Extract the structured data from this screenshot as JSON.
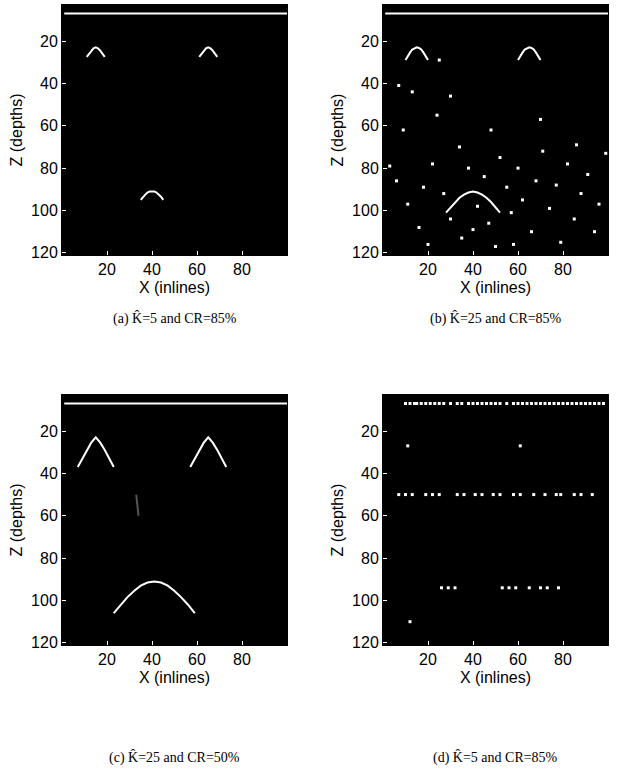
{
  "chart_data": [
    {
      "type": "scatter",
      "caption": "(a) K̂=5 and CR=85%",
      "x_label": "X (inlines)",
      "y_label": "Z (depths)",
      "xlim": [
        0,
        100
      ],
      "ylim": [
        121,
        3
      ],
      "xticks": [
        20,
        40,
        60,
        80
      ],
      "yticks": [
        20,
        40,
        60,
        80,
        100,
        120
      ],
      "series": [
        {
          "type": "line",
          "color": "#ffffff",
          "line_style": "solid",
          "x": [
            1,
            100
          ],
          "values": [
            7,
            7
          ]
        },
        {
          "type": "line",
          "color": "#ffffff",
          "line_style": "solid",
          "x": [
            11,
            12,
            13,
            14,
            15,
            16,
            17,
            18,
            19
          ],
          "values": [
            27.5,
            26,
            24.5,
            23.5,
            23,
            23.5,
            24.5,
            26,
            27.5
          ]
        },
        {
          "type": "line",
          "color": "#ffffff",
          "line_style": "solid",
          "x": [
            61,
            62,
            63,
            64,
            65,
            66,
            67,
            68,
            69
          ],
          "values": [
            27.5,
            26,
            24.5,
            23.5,
            23,
            23.5,
            24.5,
            26,
            27.5
          ]
        },
        {
          "type": "line",
          "color": "#ffffff",
          "line_style": "solid",
          "x": [
            35,
            36,
            37,
            38,
            39,
            40,
            41,
            42,
            43,
            44,
            45
          ],
          "values": [
            95,
            93.5,
            92.5,
            91.5,
            91,
            91,
            91,
            91.5,
            92.5,
            93.5,
            95
          ]
        }
      ]
    },
    {
      "type": "scatter",
      "caption": "(b) K̂=25 and CR=85%",
      "x_label": "X (inlines)",
      "y_label": "Z (depths)",
      "xlim": [
        0,
        100
      ],
      "ylim": [
        121,
        3
      ],
      "xticks": [
        20,
        40,
        60,
        80
      ],
      "yticks": [
        20,
        40,
        60,
        80,
        100,
        120
      ],
      "series": [
        {
          "type": "line",
          "color": "#ffffff",
          "line_style": "solid",
          "x": [
            1,
            100
          ],
          "values": [
            7,
            7
          ]
        },
        {
          "type": "line",
          "color": "#ffffff",
          "line_style": "solid",
          "x": [
            10,
            11,
            12,
            13,
            14,
            15,
            16,
            17,
            18,
            19,
            20
          ],
          "values": [
            29,
            27,
            25.5,
            24,
            23.3,
            23,
            23.3,
            24,
            25.5,
            27,
            29
          ]
        },
        {
          "type": "line",
          "color": "#ffffff",
          "line_style": "solid",
          "x": [
            60,
            61,
            62,
            63,
            64,
            65,
            66,
            67,
            68,
            69,
            70
          ],
          "values": [
            29,
            27,
            25.5,
            24,
            23.3,
            23,
            23.3,
            24,
            25.5,
            27,
            29
          ]
        },
        {
          "type": "line",
          "color": "#ffffff",
          "line_style": "solid",
          "x": [
            28,
            30,
            32,
            34,
            36,
            38,
            40,
            42,
            44,
            46,
            48,
            50,
            52
          ],
          "values": [
            101,
            98.5,
            96,
            94,
            92.5,
            91.5,
            91,
            91.5,
            92.5,
            94,
            96,
            98.5,
            101
          ]
        },
        {
          "type": "scatter",
          "color": "#ffffff",
          "marker": "square",
          "x": [
            7,
            9,
            13,
            25,
            30,
            34,
            3,
            6,
            11,
            16,
            18,
            22,
            27,
            30,
            35,
            38,
            42,
            45,
            47,
            50,
            52,
            55,
            57,
            60,
            62,
            66,
            68,
            71,
            74,
            77,
            79,
            82,
            85,
            88,
            91,
            94,
            96,
            99,
            20,
            40,
            58,
            86,
            48,
            70,
            24
          ],
          "values": [
            41,
            62,
            44,
            29,
            46,
            70,
            79,
            86,
            97,
            108,
            89,
            78,
            92,
            104,
            113,
            80,
            98,
            84,
            106,
            117,
            75,
            89,
            101,
            80,
            95,
            110,
            86,
            72,
            99,
            88,
            115,
            78,
            104,
            92,
            83,
            110,
            97,
            73,
            116,
            109,
            116,
            69,
            62,
            57,
            55
          ]
        }
      ]
    },
    {
      "type": "scatter",
      "caption": "(c) K̂=25 and CR=50%",
      "x_label": "X (inlines)",
      "y_label": "Z (depths)",
      "xlim": [
        0,
        100
      ],
      "ylim": [
        121,
        3
      ],
      "xticks": [
        20,
        40,
        60,
        80
      ],
      "yticks": [
        20,
        40,
        60,
        80,
        100,
        120
      ],
      "series": [
        {
          "type": "line",
          "color": "#ffffff",
          "line_style": "solid",
          "x": [
            1,
            100
          ],
          "values": [
            7,
            7
          ]
        },
        {
          "type": "line",
          "color": "#ffffff",
          "line_style": "solid",
          "x": [
            7,
            9,
            11,
            13,
            15,
            17,
            19,
            21,
            23
          ],
          "values": [
            37,
            33,
            29,
            25.5,
            23,
            25.5,
            29,
            33,
            37
          ]
        },
        {
          "type": "line",
          "color": "#ffffff",
          "line_style": "solid",
          "x": [
            57,
            59,
            61,
            63,
            65,
            67,
            69,
            71,
            73
          ],
          "values": [
            37,
            33,
            29,
            25.5,
            23,
            25.5,
            29,
            33,
            37
          ]
        },
        {
          "type": "line",
          "color": "#ffffff",
          "line_style": "solid",
          "x": [
            23,
            26,
            29,
            32,
            35,
            38,
            41,
            44,
            47,
            50,
            53,
            56,
            59
          ],
          "values": [
            106,
            102,
            98.5,
            95.5,
            93,
            91.5,
            91,
            91.5,
            93,
            95.5,
            98.5,
            102,
            106
          ]
        },
        {
          "type": "line",
          "color": "#555555",
          "line_style": "solid",
          "x": [
            33,
            34
          ],
          "values": [
            50,
            60
          ]
        }
      ]
    },
    {
      "type": "scatter",
      "caption": "(d) K̂=5 and CR=85%",
      "x_label": "X (inlines)",
      "y_label": "Z (depths)",
      "xlim": [
        0,
        100
      ],
      "ylim": [
        121,
        3
      ],
      "xticks": [
        20,
        40,
        60,
        80
      ],
      "yticks": [
        20,
        40,
        60,
        80,
        100,
        120
      ],
      "series": [
        {
          "type": "scatter",
          "color": "#ffffff",
          "marker": "square",
          "x": [
            10,
            12,
            14,
            15,
            17,
            19,
            21,
            23,
            25,
            27,
            30,
            33,
            35,
            38,
            40,
            42,
            44,
            46,
            48,
            50,
            52,
            55,
            58,
            60,
            62,
            64,
            66,
            68,
            70,
            72,
            74,
            76,
            78,
            80,
            82,
            84,
            86,
            88,
            90,
            92,
            94,
            96,
            98
          ],
          "values": [
            7,
            7,
            7,
            7,
            7,
            7,
            7,
            7,
            7,
            7,
            7,
            7,
            7,
            7,
            7,
            7,
            7,
            7,
            7,
            7,
            7,
            7,
            7,
            7,
            7,
            7,
            7,
            7,
            7,
            7,
            7,
            7,
            7,
            7,
            7,
            7,
            7,
            7,
            7,
            7,
            7,
            7,
            7
          ]
        },
        {
          "type": "scatter",
          "color": "#ffffff",
          "marker": "square",
          "x": [
            7,
            10,
            13,
            19,
            22,
            25,
            33,
            36,
            41,
            44,
            49,
            52,
            58,
            61,
            67,
            72,
            77,
            79,
            85,
            88,
            93
          ],
          "values": [
            50,
            50,
            50,
            50,
            50,
            50,
            50,
            50,
            50,
            50,
            50,
            50,
            50,
            50,
            50,
            50,
            50,
            50,
            50,
            50,
            50
          ]
        },
        {
          "type": "scatter",
          "color": "#ffffff",
          "marker": "square",
          "x": [
            26,
            29,
            32,
            53,
            56,
            59,
            65,
            70,
            73,
            78
          ],
          "values": [
            94,
            94,
            94,
            94,
            94,
            94,
            94,
            94,
            94,
            94
          ]
        },
        {
          "type": "scatter",
          "color": "#ffffff",
          "marker": "square",
          "x": [
            11,
            61,
            12
          ],
          "values": [
            27,
            27,
            110
          ]
        }
      ]
    }
  ]
}
